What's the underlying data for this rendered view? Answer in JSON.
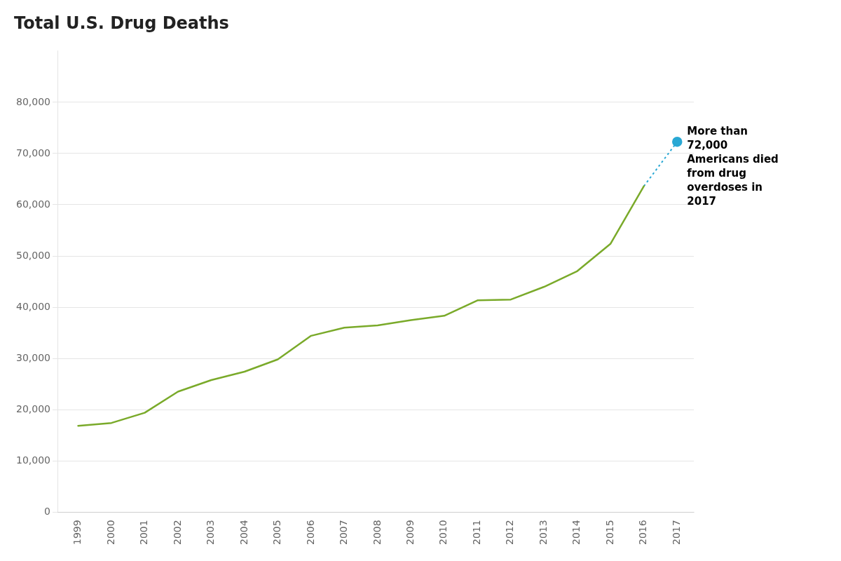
{
  "chart_data": {
    "type": "line",
    "title": "Total U.S. Drug Deaths",
    "x": [
      1999,
      2000,
      2001,
      2002,
      2003,
      2004,
      2005,
      2006,
      2007,
      2008,
      2009,
      2010,
      2011,
      2012,
      2013,
      2014,
      2015,
      2016,
      2017
    ],
    "series": [
      {
        "type": "line",
        "color": "#7aaa2a",
        "line_style": "solid",
        "values": [
          16849,
          17415,
          19394,
          23518,
          25785,
          27424,
          29813,
          34425,
          36010,
          36450,
          37485,
          38329,
          41340,
          41502,
          43982,
          47055,
          52404,
          63632,
          null
        ]
      },
      {
        "type": "line",
        "color": "#29a8d4",
        "line_style": "dotted",
        "values": [
          null,
          null,
          null,
          null,
          null,
          null,
          null,
          null,
          null,
          null,
          null,
          null,
          null,
          null,
          null,
          null,
          null,
          63632,
          72287
        ]
      },
      {
        "type": "scatter",
        "color": "#29a8d4",
        "marker": "circle",
        "values": [
          null,
          null,
          null,
          null,
          null,
          null,
          null,
          null,
          null,
          null,
          null,
          null,
          null,
          null,
          null,
          null,
          null,
          null,
          72287
        ]
      }
    ],
    "annotation": "More than\n72,000\nAmericans died\nfrom drug\noverdoses in\n2017",
    "xlim": [
      1998.4,
      2017.5
    ],
    "xticks": [
      1999,
      2000,
      2001,
      2002,
      2003,
      2004,
      2005,
      2006,
      2007,
      2008,
      2009,
      2010,
      2011,
      2012,
      2013,
      2014,
      2015,
      2016,
      2017
    ],
    "ylim": [
      0,
      90000
    ],
    "yticks": [
      0,
      {
        "value": 10000,
        "label": "10,000"
      },
      {
        "value": 20000,
        "label": "20,000"
      },
      {
        "value": 30000,
        "label": "30,000"
      },
      {
        "value": 40000,
        "label": "40,000"
      },
      {
        "value": 50000,
        "label": "50,000"
      },
      {
        "value": 60000,
        "label": "60,000"
      },
      {
        "value": 70000,
        "label": "70,000"
      },
      {
        "value": 80000,
        "label": "80,000"
      }
    ],
    "grid": true
  }
}
